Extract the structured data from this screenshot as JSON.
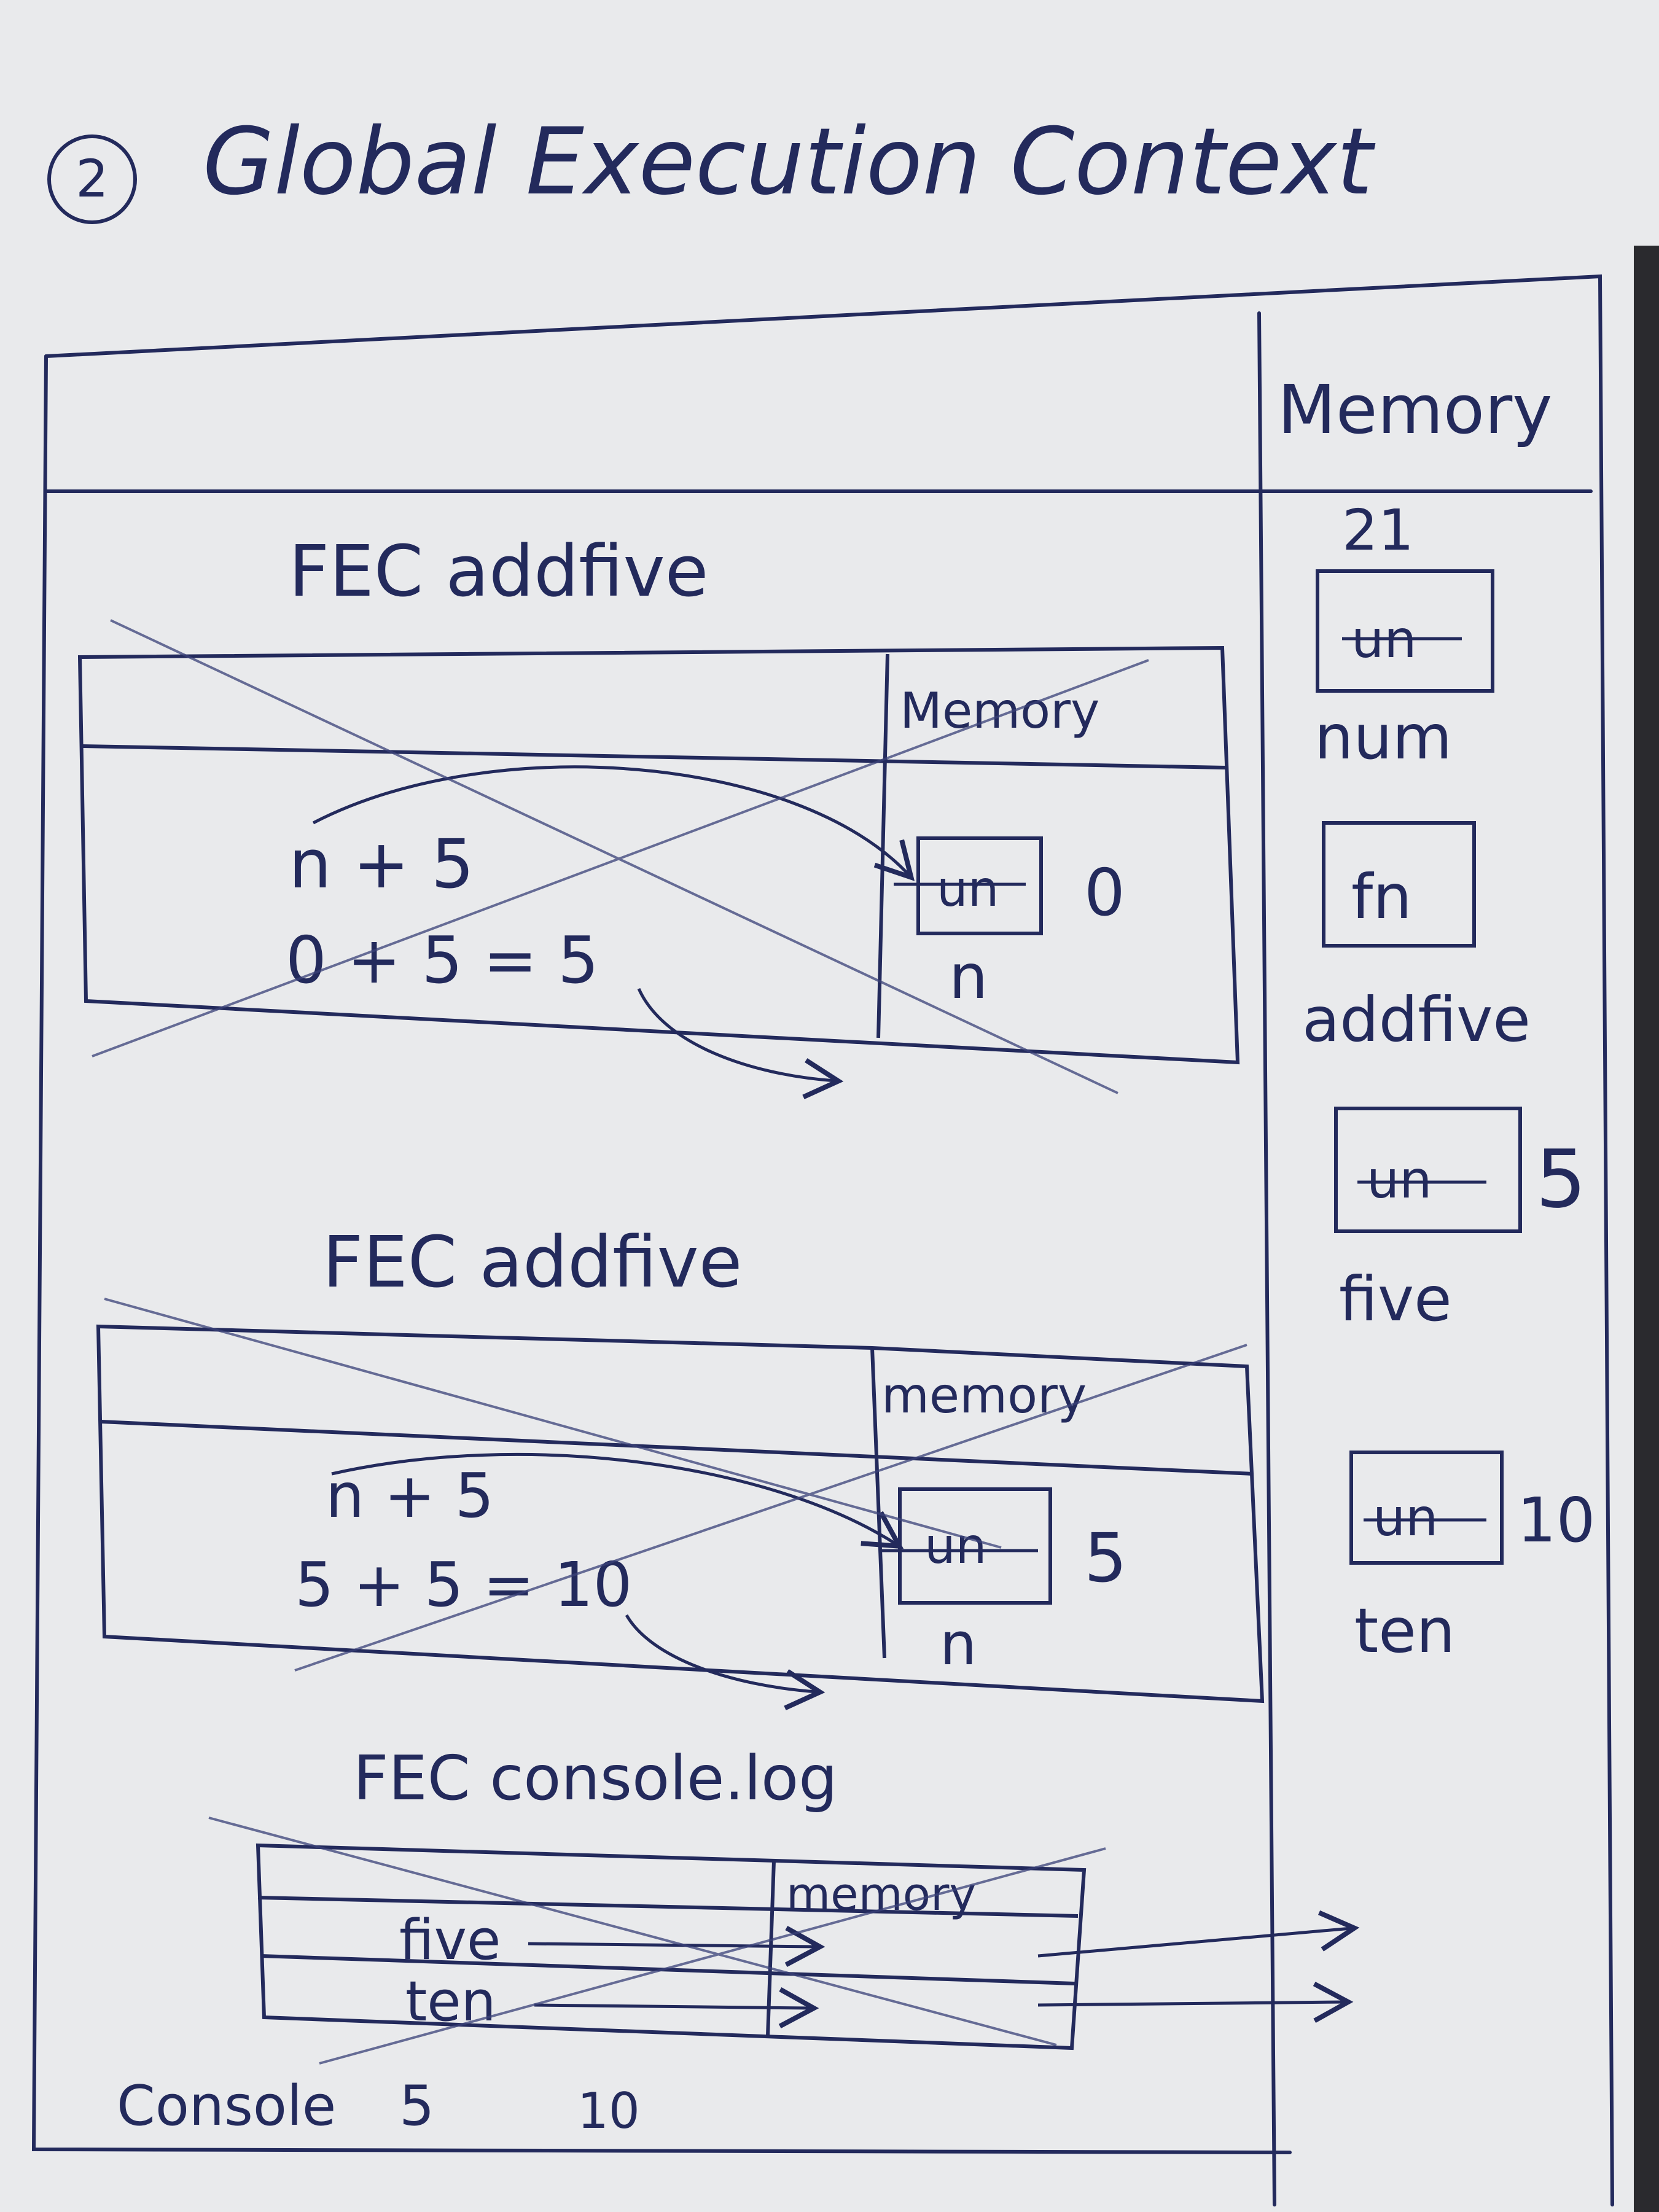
{
  "title": {
    "number": "2",
    "text": "Global Execution Context"
  },
  "global_memory": {
    "header": "Memory",
    "entries": [
      {
        "box": "un",
        "name": "num",
        "value": "21"
      },
      {
        "box": "fn",
        "name": "addfive",
        "value": ""
      },
      {
        "box": "un",
        "name": "five",
        "value": "5"
      },
      {
        "box": "un",
        "name": "ten",
        "value": "10"
      }
    ]
  },
  "contexts": [
    {
      "title": "FEC addfive",
      "memory_header": "Memory",
      "code_lines": [
        "n + 5",
        "0 + 5 = 5"
      ],
      "memory_box": "un",
      "memory_value": "0",
      "memory_name": "n"
    },
    {
      "title": "FEC addfive",
      "memory_header": "memory",
      "code_lines": [
        "n + 5",
        "5 + 5 = 10"
      ],
      "memory_box": "un",
      "memory_value": "5",
      "memory_name": "n"
    },
    {
      "title": "FEC console.log",
      "memory_header": "memory",
      "code_lines": [
        "five",
        "ten"
      ]
    }
  ],
  "console": {
    "label": "Console",
    "outputs": [
      "5",
      "10"
    ]
  },
  "colors": {
    "ink": "#232a5c",
    "paper": "#e9eaec",
    "faint": "#5a6290"
  }
}
